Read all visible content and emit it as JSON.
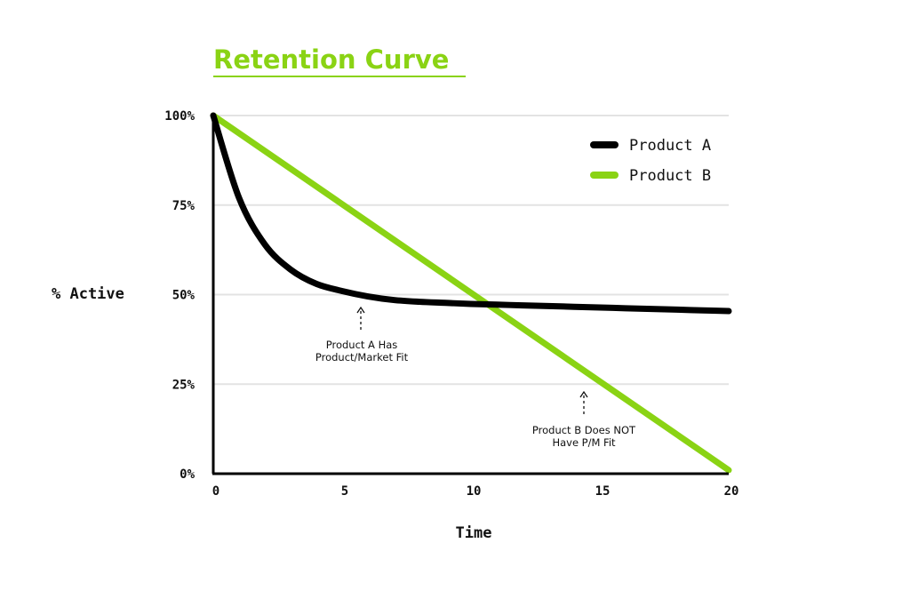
{
  "chart_data": {
    "type": "line",
    "title": "Retention Curve",
    "xlabel": "Time",
    "ylabel": "% Active",
    "xlim": [
      0,
      20
    ],
    "ylim": [
      0,
      100
    ],
    "x_ticks": [
      "0",
      "5",
      "10",
      "15",
      "20"
    ],
    "y_ticks": [
      "0%",
      "25%",
      "50%",
      "75%",
      "100%"
    ],
    "grid": "horizontal",
    "legend_position": "top-right",
    "series": [
      {
        "name": "Product A",
        "color": "#000000",
        "x": [
          0,
          1,
          2,
          3,
          4,
          5,
          6,
          7,
          8,
          9,
          10,
          11,
          12,
          13,
          14,
          15,
          16,
          17,
          18,
          19,
          20
        ],
        "values": [
          100,
          77,
          64,
          57,
          53,
          51,
          49.5,
          48.5,
          48,
          47.7,
          47.4,
          47.2,
          47,
          46.8,
          46.6,
          46.4,
          46.2,
          46,
          45.8,
          45.6,
          45.4
        ]
      },
      {
        "name": "Product B",
        "color": "#8ad314",
        "x": [
          0,
          20
        ],
        "values": [
          100,
          1
        ]
      }
    ],
    "annotations": [
      {
        "lines": [
          "Product A Has",
          "Product/Market Fit"
        ],
        "x": 5.8,
        "y": 47
      },
      {
        "lines": [
          "Product B Does NOT",
          "Have P/M Fit"
        ],
        "x": 14.5,
        "y": 23
      }
    ]
  },
  "colors": {
    "accent": "#8ad314",
    "ink": "#000000",
    "grid": "#e3e3e3"
  }
}
